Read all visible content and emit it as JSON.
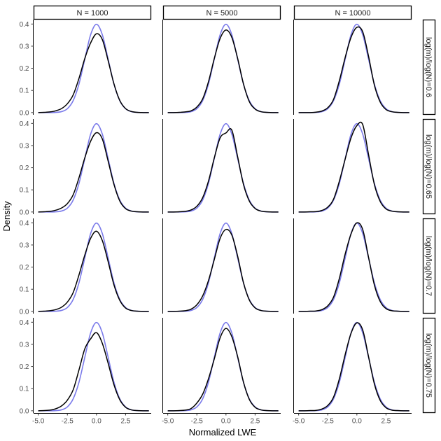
{
  "chart_data": {
    "type": "line",
    "xlabel": "Normalized LWE",
    "ylabel": "Density",
    "xlim": [
      -5.4,
      4.7
    ],
    "ylim": [
      -0.01,
      0.42
    ],
    "x_ticks": [
      -5.0,
      -2.5,
      0.0,
      2.5
    ],
    "x_tick_labels": [
      "-5.0",
      "-2.5",
      "0.0",
      "2.5"
    ],
    "y_ticks": [
      0.0,
      0.1,
      0.2,
      0.3,
      0.4
    ],
    "y_tick_labels": [
      "0.0",
      "0.1",
      "0.2",
      "0.3",
      "0.4"
    ],
    "columns": [
      "N = 1000",
      "N = 5000",
      "N = 10000"
    ],
    "rows": [
      "log(m)/log(N)=0.6",
      "log(m)/log(N)=0.65",
      "log(m)/log(N)=0.7",
      "log(m)/log(N)=0.75"
    ],
    "colors": {
      "empirical": "#000000",
      "reference": "#7b7bea",
      "overlap": "#1f1fa0"
    },
    "x": [
      -5.0,
      -4.5,
      -4.0,
      -3.5,
      -3.0,
      -2.5,
      -2.0,
      -1.5,
      -1.0,
      -0.5,
      0.0,
      0.5,
      1.0,
      1.5,
      2.0,
      2.5,
      3.0,
      3.5,
      4.0,
      4.5
    ],
    "reference_curve": [
      0.0,
      0.0,
      0.0001,
      0.0009,
      0.0044,
      0.0175,
      0.054,
      0.1295,
      0.242,
      0.352,
      0.399,
      0.352,
      0.242,
      0.1295,
      0.054,
      0.0175,
      0.0044,
      0.0009,
      0.0001,
      0.0
    ],
    "panels": [
      {
        "row": 0,
        "col": 0,
        "empirical": [
          0.0,
          0.001,
          0.003,
          0.008,
          0.018,
          0.04,
          0.08,
          0.155,
          0.245,
          0.315,
          0.356,
          0.33,
          0.235,
          0.13,
          0.055,
          0.018,
          0.005,
          0.001,
          0.0,
          0.0
        ]
      },
      {
        "row": 0,
        "col": 1,
        "empirical": [
          0.0,
          0.0,
          0.001,
          0.003,
          0.008,
          0.025,
          0.062,
          0.14,
          0.245,
          0.335,
          0.373,
          0.34,
          0.245,
          0.13,
          0.05,
          0.016,
          0.004,
          0.001,
          0.0,
          0.0
        ]
      },
      {
        "row": 0,
        "col": 2,
        "empirical": [
          0.0,
          0.0,
          0.0,
          0.002,
          0.007,
          0.022,
          0.06,
          0.145,
          0.25,
          0.34,
          0.385,
          0.365,
          0.255,
          0.125,
          0.048,
          0.014,
          0.004,
          0.001,
          0.0,
          0.0
        ]
      },
      {
        "row": 1,
        "col": 0,
        "empirical": [
          0.0,
          0.001,
          0.003,
          0.008,
          0.018,
          0.038,
          0.078,
          0.155,
          0.245,
          0.32,
          0.358,
          0.33,
          0.23,
          0.125,
          0.05,
          0.015,
          0.004,
          0.001,
          0.0,
          0.0
        ]
      },
      {
        "row": 1,
        "col": 1,
        "empirical": [
          0.0,
          0.0,
          0.001,
          0.003,
          0.009,
          0.026,
          0.065,
          0.14,
          0.245,
          0.335,
          0.357,
          0.37,
          0.25,
          0.125,
          0.05,
          0.016,
          0.004,
          0.001,
          0.0,
          0.0
        ]
      },
      {
        "row": 1,
        "col": 2,
        "empirical": [
          0.0,
          0.0,
          0.001,
          0.002,
          0.007,
          0.022,
          0.058,
          0.14,
          0.24,
          0.335,
          0.39,
          0.395,
          0.26,
          0.125,
          0.048,
          0.014,
          0.004,
          0.001,
          0.0,
          0.0
        ]
      },
      {
        "row": 2,
        "col": 0,
        "empirical": [
          0.0,
          0.001,
          0.003,
          0.008,
          0.019,
          0.042,
          0.085,
          0.165,
          0.255,
          0.33,
          0.362,
          0.32,
          0.225,
          0.12,
          0.05,
          0.015,
          0.004,
          0.001,
          0.0,
          0.0
        ]
      },
      {
        "row": 2,
        "col": 1,
        "empirical": [
          0.0,
          0.0,
          0.001,
          0.003,
          0.01,
          0.03,
          0.07,
          0.14,
          0.235,
          0.33,
          0.37,
          0.345,
          0.25,
          0.13,
          0.052,
          0.016,
          0.004,
          0.001,
          0.0,
          0.0
        ]
      },
      {
        "row": 2,
        "col": 2,
        "empirical": [
          0.0,
          0.0,
          0.001,
          0.002,
          0.008,
          0.025,
          0.065,
          0.15,
          0.26,
          0.35,
          0.4,
          0.37,
          0.245,
          0.12,
          0.045,
          0.013,
          0.003,
          0.001,
          0.0,
          0.0
        ]
      },
      {
        "row": 3,
        "col": 0,
        "empirical": [
          0.0,
          0.001,
          0.003,
          0.009,
          0.022,
          0.048,
          0.095,
          0.185,
          0.28,
          0.325,
          0.353,
          0.305,
          0.215,
          0.118,
          0.05,
          0.016,
          0.004,
          0.001,
          0.0,
          0.0
        ]
      },
      {
        "row": 3,
        "col": 1,
        "empirical": [
          0.0,
          0.0,
          0.001,
          0.003,
          0.01,
          0.035,
          0.075,
          0.145,
          0.235,
          0.33,
          0.372,
          0.335,
          0.245,
          0.13,
          0.052,
          0.016,
          0.004,
          0.001,
          0.0,
          0.0
        ]
      },
      {
        "row": 3,
        "col": 2,
        "empirical": [
          0.0,
          0.0,
          0.001,
          0.002,
          0.008,
          0.024,
          0.062,
          0.145,
          0.255,
          0.35,
          0.397,
          0.365,
          0.245,
          0.122,
          0.047,
          0.014,
          0.003,
          0.001,
          0.0,
          0.0
        ]
      }
    ]
  }
}
